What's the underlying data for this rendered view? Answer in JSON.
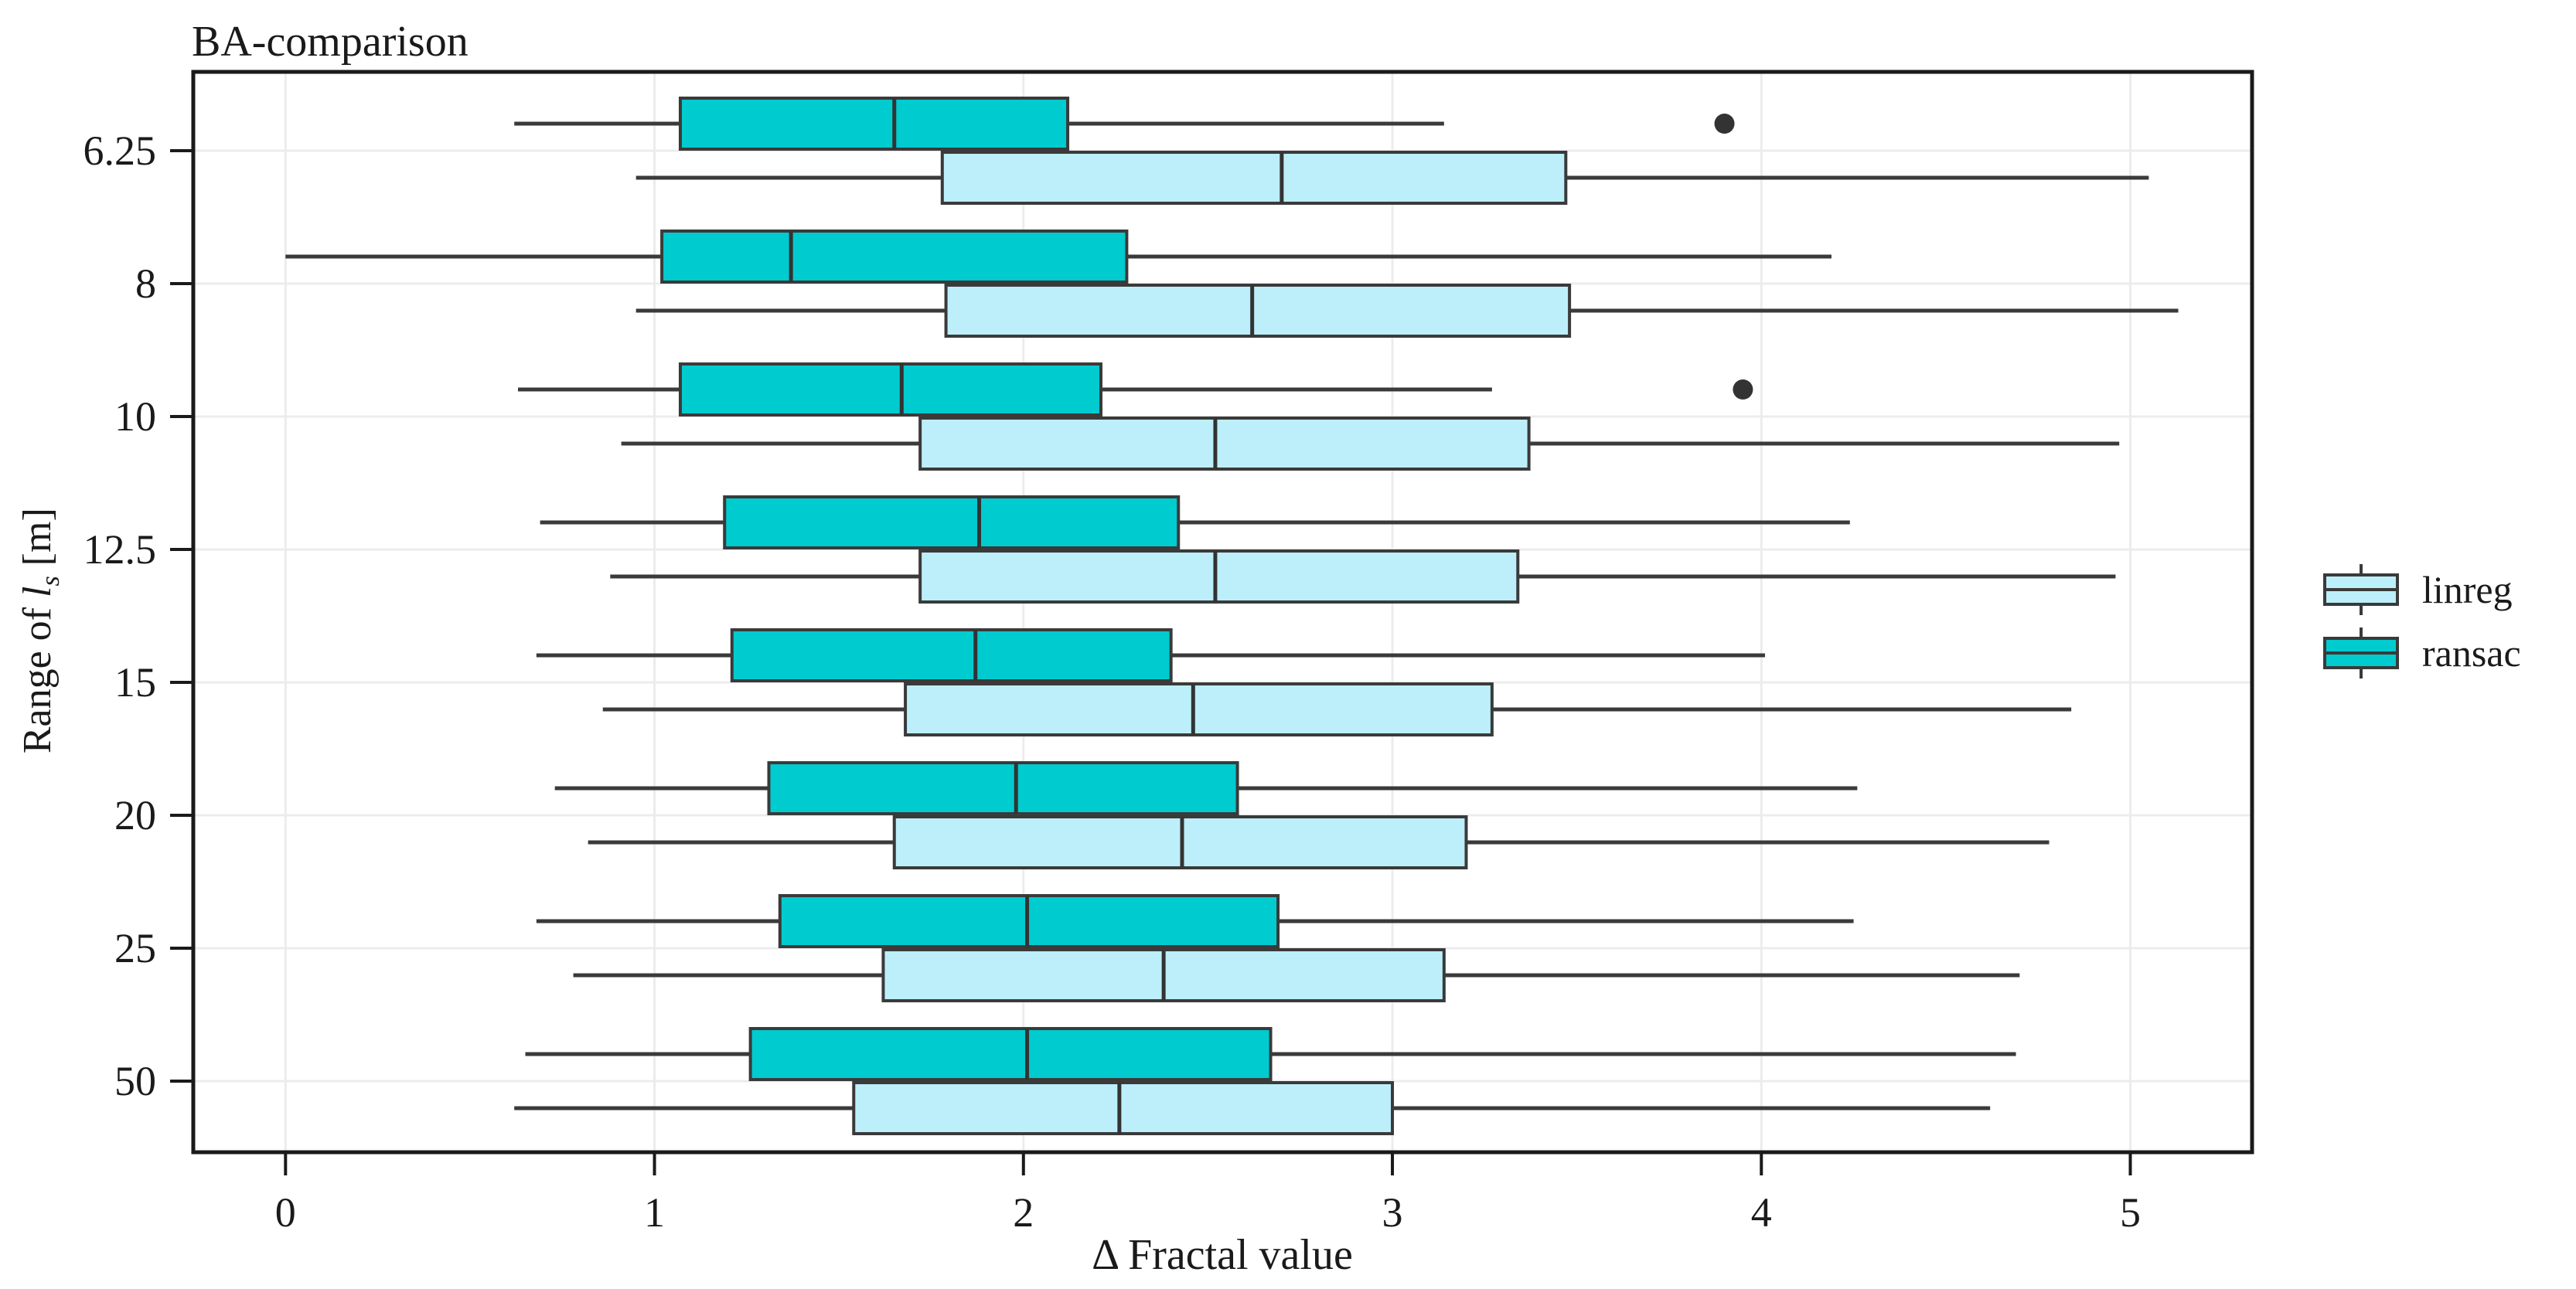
{
  "title": "BA-comparison",
  "chart_data": {
    "type": "boxplot",
    "orientation": "horizontal",
    "title": "BA-comparison",
    "xlabel": "Δ Fractal value",
    "ylabel": "Range of l_s [m]",
    "ylabel_parts": {
      "prefix": "Range of ",
      "variable": "l",
      "subscript": "s",
      "suffix": " [m]"
    },
    "categories": [
      "6.25",
      "8",
      "10",
      "12.5",
      "15",
      "20",
      "25",
      "50"
    ],
    "x_ticks": [
      "0",
      "1",
      "2",
      "3",
      "4",
      "5"
    ],
    "xlim": [
      -0.25,
      5.33
    ],
    "grid": true,
    "legend_position": "right",
    "colors": {
      "frame": "#1a1a1a",
      "grid": "#ececec",
      "box_stroke": "#3a3a3a",
      "outlier": "#333333"
    },
    "series": [
      {
        "name": "linreg",
        "color": "#bceff9",
        "boxes": [
          {
            "whisker_low": 0.95,
            "q1": 1.78,
            "median": 2.7,
            "q3": 3.47,
            "whisker_high": 5.05,
            "outliers": []
          },
          {
            "whisker_low": 0.95,
            "q1": 1.79,
            "median": 2.62,
            "q3": 3.48,
            "whisker_high": 5.13,
            "outliers": []
          },
          {
            "whisker_low": 0.91,
            "q1": 1.72,
            "median": 2.52,
            "q3": 3.37,
            "whisker_high": 4.97,
            "outliers": []
          },
          {
            "whisker_low": 0.88,
            "q1": 1.72,
            "median": 2.52,
            "q3": 3.34,
            "whisker_high": 4.96,
            "outliers": []
          },
          {
            "whisker_low": 0.86,
            "q1": 1.68,
            "median": 2.46,
            "q3": 3.27,
            "whisker_high": 4.84,
            "outliers": []
          },
          {
            "whisker_low": 0.82,
            "q1": 1.65,
            "median": 2.43,
            "q3": 3.2,
            "whisker_high": 4.78,
            "outliers": []
          },
          {
            "whisker_low": 0.78,
            "q1": 1.62,
            "median": 2.38,
            "q3": 3.14,
            "whisker_high": 4.7,
            "outliers": []
          },
          {
            "whisker_low": 0.62,
            "q1": 1.54,
            "median": 2.26,
            "q3": 3.0,
            "whisker_high": 4.62,
            "outliers": []
          }
        ]
      },
      {
        "name": "ransac",
        "color": "#00cbcf",
        "boxes": [
          {
            "whisker_low": 0.62,
            "q1": 1.07,
            "median": 1.65,
            "q3": 2.12,
            "whisker_high": 3.14,
            "outliers": [
              3.9
            ]
          },
          {
            "whisker_low": 0.0,
            "q1": 1.02,
            "median": 1.37,
            "q3": 2.28,
            "whisker_high": 4.19,
            "outliers": []
          },
          {
            "whisker_low": 0.63,
            "q1": 1.07,
            "median": 1.67,
            "q3": 2.21,
            "whisker_high": 3.27,
            "outliers": [
              3.95
            ]
          },
          {
            "whisker_low": 0.69,
            "q1": 1.19,
            "median": 1.88,
            "q3": 2.42,
            "whisker_high": 4.24,
            "outliers": []
          },
          {
            "whisker_low": 0.68,
            "q1": 1.21,
            "median": 1.87,
            "q3": 2.4,
            "whisker_high": 4.01,
            "outliers": []
          },
          {
            "whisker_low": 0.73,
            "q1": 1.31,
            "median": 1.98,
            "q3": 2.58,
            "whisker_high": 4.26,
            "outliers": []
          },
          {
            "whisker_low": 0.68,
            "q1": 1.34,
            "median": 2.01,
            "q3": 2.69,
            "whisker_high": 4.25,
            "outliers": []
          },
          {
            "whisker_low": 0.65,
            "q1": 1.26,
            "median": 2.01,
            "q3": 2.67,
            "whisker_high": 4.69,
            "outliers": []
          }
        ]
      }
    ]
  }
}
